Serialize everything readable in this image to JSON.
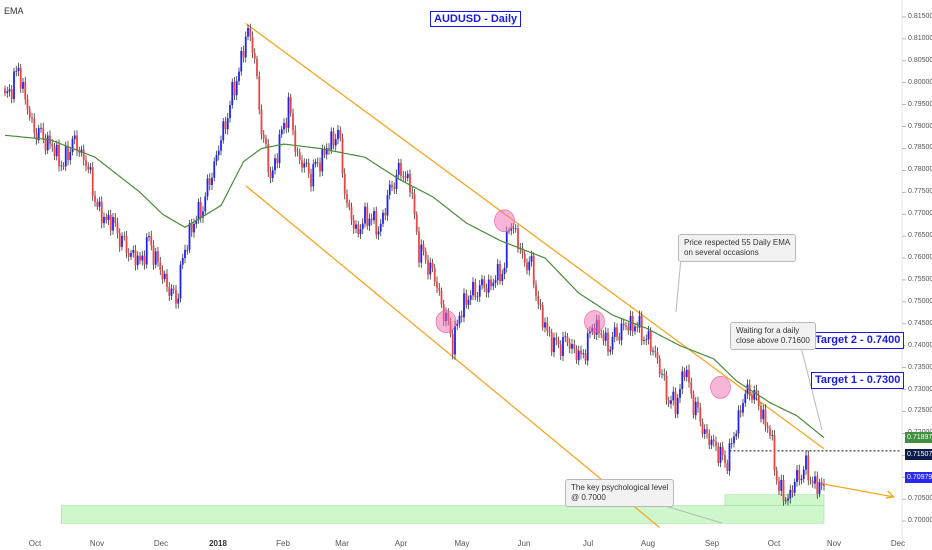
{
  "title": "AUDUSD - Daily",
  "indicator": "EMA",
  "targets": [
    {
      "label": "Target 2 - 0.7400"
    },
    {
      "label": "Target 1 - 0.7300"
    }
  ],
  "notes": {
    "ema": [
      "Price respected 55 Daily EMA",
      "on several occasions"
    ],
    "close": [
      "Waiting for a daily",
      "close above 0.71600"
    ],
    "psych": [
      "The key psychological level",
      "@ 0.7000"
    ]
  },
  "price_badges": [
    {
      "label": "0.71897",
      "value": 0.71897,
      "color": "#3f8f3f"
    },
    {
      "label": "0.71507",
      "value": 0.71507,
      "color": "#0d1b4a"
    },
    {
      "label": "0.70979",
      "value": 0.70979,
      "color": "#2a2aee"
    }
  ],
  "chart_data": {
    "type": "candlestick",
    "symbol": "AUDUSD",
    "timeframe": "Daily",
    "x_axis": {
      "labels": [
        "Oct",
        "Nov",
        "Dec",
        "2018",
        "Feb",
        "Mar",
        "Apr",
        "May",
        "Jun",
        "Jul",
        "Aug",
        "Sep",
        "Oct",
        "Nov",
        "Dec"
      ],
      "bold_labels": [
        "2018"
      ]
    },
    "y_axis": {
      "range": [
        0.6975,
        0.8175
      ],
      "ticks": [
        "0.81500",
        "0.81000",
        "0.80500",
        "0.80000",
        "0.79500",
        "0.79000",
        "0.78500",
        "0.78000",
        "0.77500",
        "0.77000",
        "0.76500",
        "0.76000",
        "0.75500",
        "0.75000",
        "0.74500",
        "0.74000",
        "0.73500",
        "0.73000",
        "0.72500",
        "0.72000",
        "0.71500",
        "0.71000",
        "0.70500",
        "0.70000"
      ]
    },
    "price_path_anchors": [
      [
        0,
        0.796
      ],
      [
        6,
        0.803
      ],
      [
        12,
        0.79
      ],
      [
        20,
        0.786
      ],
      [
        26,
        0.781
      ],
      [
        30,
        0.787
      ],
      [
        36,
        0.782
      ],
      [
        42,
        0.77
      ],
      [
        48,
        0.768
      ],
      [
        54,
        0.762
      ],
      [
        60,
        0.759
      ],
      [
        64,
        0.764
      ],
      [
        70,
        0.756
      ],
      [
        74,
        0.752
      ],
      [
        76,
        0.75
      ],
      [
        78,
        0.757
      ],
      [
        82,
        0.766
      ],
      [
        88,
        0.772
      ],
      [
        96,
        0.787
      ],
      [
        104,
        0.803
      ],
      [
        108,
        0.812
      ],
      [
        110,
        0.809
      ],
      [
        114,
        0.79
      ],
      [
        118,
        0.778
      ],
      [
        120,
        0.782
      ],
      [
        126,
        0.795
      ],
      [
        130,
        0.783
      ],
      [
        136,
        0.779
      ],
      [
        142,
        0.784
      ],
      [
        148,
        0.789
      ],
      [
        152,
        0.772
      ],
      [
        156,
        0.766
      ],
      [
        162,
        0.77
      ],
      [
        166,
        0.766
      ],
      [
        172,
        0.777
      ],
      [
        176,
        0.78
      ],
      [
        180,
        0.777
      ],
      [
        184,
        0.762
      ],
      [
        190,
        0.757
      ],
      [
        196,
        0.746
      ],
      [
        199,
        0.741
      ],
      [
        204,
        0.75
      ],
      [
        210,
        0.753
      ],
      [
        216,
        0.754
      ],
      [
        222,
        0.758
      ],
      [
        224,
        0.768
      ],
      [
        226,
        0.767
      ],
      [
        230,
        0.76
      ],
      [
        234,
        0.758
      ],
      [
        238,
        0.747
      ],
      [
        244,
        0.74
      ],
      [
        250,
        0.741
      ],
      [
        256,
        0.737
      ],
      [
        262,
        0.745
      ],
      [
        268,
        0.74
      ],
      [
        274,
        0.744
      ],
      [
        280,
        0.745
      ],
      [
        286,
        0.741
      ],
      [
        290,
        0.737
      ],
      [
        294,
        0.729
      ],
      [
        298,
        0.726
      ],
      [
        302,
        0.735
      ],
      [
        306,
        0.727
      ],
      [
        312,
        0.719
      ],
      [
        316,
        0.717
      ],
      [
        320,
        0.713
      ],
      [
        324,
        0.719
      ],
      [
        328,
        0.728
      ],
      [
        332,
        0.73
      ],
      [
        336,
        0.725
      ],
      [
        340,
        0.72
      ],
      [
        344,
        0.707
      ],
      [
        348,
        0.705
      ],
      [
        352,
        0.71
      ],
      [
        356,
        0.712
      ],
      [
        360,
        0.708
      ],
      [
        364,
        0.708
      ]
    ],
    "ema": {
      "period": 55,
      "color": "#4a8c3a",
      "anchors": [
        [
          0,
          0.788
        ],
        [
          20,
          0.787
        ],
        [
          40,
          0.783
        ],
        [
          60,
          0.775
        ],
        [
          70,
          0.77
        ],
        [
          80,
          0.767
        ],
        [
          96,
          0.772
        ],
        [
          106,
          0.782
        ],
        [
          114,
          0.785
        ],
        [
          124,
          0.786
        ],
        [
          140,
          0.785
        ],
        [
          160,
          0.783
        ],
        [
          175,
          0.778
        ],
        [
          190,
          0.774
        ],
        [
          205,
          0.768
        ],
        [
          220,
          0.764
        ],
        [
          240,
          0.76
        ],
        [
          255,
          0.752
        ],
        [
          270,
          0.747
        ],
        [
          285,
          0.744
        ],
        [
          300,
          0.74
        ],
        [
          315,
          0.737
        ],
        [
          325,
          0.732
        ],
        [
          340,
          0.727
        ],
        [
          352,
          0.724
        ],
        [
          364,
          0.719
        ]
      ]
    },
    "channel": {
      "color": "#f5a623",
      "upper": [
        [
          107,
          0.8135
        ],
        [
          364,
          0.7165
        ]
      ],
      "lower": [
        [
          107,
          0.7765
        ],
        [
          291,
          0.6985
        ]
      ]
    },
    "ema_touches": [
      [
        222,
        0.7685
      ],
      [
        262,
        0.7455
      ],
      [
        196,
        0.7455
      ],
      [
        318,
        0.7305
      ]
    ],
    "zones": [
      {
        "from": 0.6995,
        "to": 0.7035,
        "x0": 25,
        "x1": 364
      },
      {
        "from": 0.7035,
        "to": 0.706,
        "x0": 320,
        "x1": 364
      }
    ],
    "resistance_level": 0.716,
    "projection_to": [
      395,
      0.7055
    ]
  }
}
